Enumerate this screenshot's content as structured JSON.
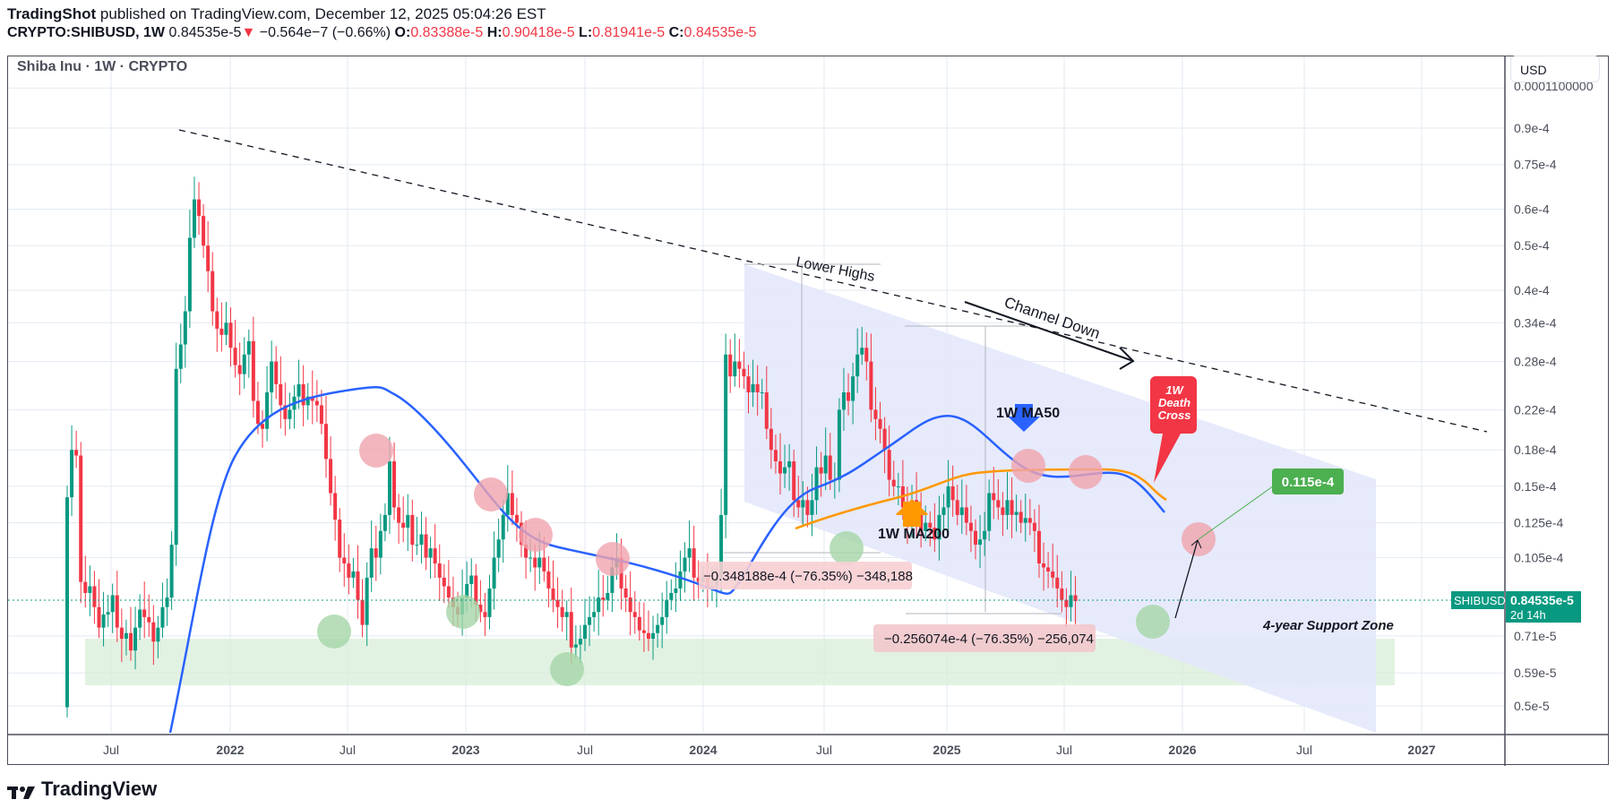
{
  "header": {
    "author": "TradingShot",
    "published_text": "published on TradingView.com, December 12, 2025 05:04:26 EST",
    "symbol": "CRYPTO:SHIBUSD, 1W",
    "last": "0.84535e-5",
    "change_arrow": "▼",
    "change": "−0.564e−7 (−0.66%)",
    "open_label": "O:",
    "open": "0.83388e-5",
    "high_label": "H:",
    "high": "0.90418e-5",
    "low_label": "L:",
    "low": "0.81941e-5",
    "close_label": "C:",
    "close": "0.84535e-5"
  },
  "plot_title": "Shiba Inu · 1W · CRYPTO",
  "currency_button": "USD",
  "logo_text": "TradingView",
  "colors": {
    "up": "#089981",
    "down": "#f23645",
    "ma50": "#2962ff",
    "ma200": "#ff9800",
    "channel": "#e3e8fb",
    "support_zone": "#d5ecd6",
    "red_circle": "#f0a4ae",
    "green_circle": "#a5d6a7",
    "target_label": "#4caf50",
    "price_label": "#089981",
    "death_cross": "#f23645"
  },
  "chart_data": {
    "type": "candlestick",
    "title": "Shiba Inu · 1W · CRYPTO",
    "xlabel": "",
    "ylabel": "USD",
    "y_scale": "log",
    "ylim": [
      4.5e-06,
      0.000105
    ],
    "y_ticks": [
      "0.0001100000",
      "0.9e-4",
      "0.75e-4",
      "0.6e-4",
      "0.5e-4",
      "0.4e-4",
      "0.34e-4",
      "0.28e-4",
      "0.22e-4",
      "0.18e-4",
      "0.15e-4",
      "0.125e-4",
      "0.105e-4",
      "0.71e-5",
      "0.59e-5",
      "0.5e-5"
    ],
    "y_tick_values": [
      0.00011,
      9e-05,
      7.5e-05,
      6e-05,
      5e-05,
      4e-05,
      3.4e-05,
      2.8e-05,
      2.2e-05,
      1.8e-05,
      1.5e-05,
      1.25e-05,
      1.05e-05,
      7.1e-06,
      5.9e-06,
      5e-06
    ],
    "x_ticks": [
      "Jul",
      "2022",
      "Jul",
      "2023",
      "Jul",
      "2024",
      "Jul",
      "2025",
      "Jul",
      "2026",
      "Jul",
      "2027"
    ],
    "grid": true,
    "current_price": {
      "symbol": "SHIBUSD",
      "value": "0.84535e-5",
      "countdown": "2d 14h"
    },
    "series": [
      {
        "name": "SHIBUSD weekly close (approx, e-5)",
        "start": "2021-05",
        "values": [
          1.42,
          1.8,
          1.75,
          0.93,
          0.88,
          0.91,
          0.82,
          0.74,
          0.79,
          0.8,
          0.87,
          0.74,
          0.7,
          0.72,
          0.66,
          0.74,
          0.81,
          0.78,
          0.76,
          0.69,
          0.74,
          0.82,
          0.86,
          1.12,
          2.7,
          3.05,
          3.6,
          5.2,
          6.3,
          5.8,
          5.0,
          4.4,
          3.6,
          3.3,
          3.2,
          3.4,
          3.0,
          2.75,
          2.63,
          2.9,
          3.1,
          2.3,
          2.05,
          2.0,
          2.4,
          2.8,
          2.5,
          2.25,
          2.1,
          2.2,
          2.35,
          2.5,
          2.25,
          2.35,
          2.3,
          2.25,
          2.05,
          1.72,
          1.45,
          1.27,
          1.05,
          1.02,
          0.95,
          0.98,
          0.85,
          0.75,
          0.95,
          1.1,
          1.05,
          1.2,
          1.3,
          1.7,
          1.35,
          1.25,
          1.22,
          1.3,
          1.12,
          1.12,
          1.18,
          1.05,
          1.1,
          1.02,
          0.95,
          0.91,
          0.86,
          0.82,
          0.79,
          0.86,
          0.92,
          0.96,
          0.83,
          0.8,
          0.78,
          0.9,
          1.05,
          1.15,
          1.3,
          1.45,
          1.3,
          1.25,
          1.12,
          1.05,
          1.05,
          1.0,
          1.05,
          0.98,
          0.9,
          0.85,
          0.82,
          0.78,
          0.8,
          0.67,
          0.68,
          0.7,
          0.75,
          0.78,
          0.8,
          0.86,
          0.85,
          0.88,
          1.0,
          1.05,
          0.9,
          0.86,
          0.8,
          0.78,
          0.73,
          0.72,
          0.7,
          0.72,
          0.75,
          0.78,
          0.85,
          0.88,
          0.9,
          0.98,
          1.05,
          1.1,
          0.95,
          0.93,
          0.95,
          0.9,
          0.91,
          0.95,
          1.3,
          2.9,
          2.6,
          2.8,
          2.7,
          2.6,
          2.4,
          2.5,
          2.4,
          2.4,
          2.0,
          1.8,
          1.7,
          1.6,
          1.65,
          1.7,
          1.4,
          1.35,
          1.4,
          1.3,
          1.4,
          1.65,
          1.6,
          1.75,
          1.55,
          1.55,
          2.2,
          2.4,
          2.3,
          2.6,
          2.9,
          3.0,
          2.8,
          2.2,
          2.1,
          2.0,
          1.8,
          1.55,
          1.5,
          1.5,
          1.35,
          1.25,
          1.4,
          1.3,
          1.2,
          1.25,
          1.22,
          1.15,
          1.3,
          1.35,
          1.5,
          1.4,
          1.3,
          1.35,
          1.25,
          1.2,
          1.12,
          1.15,
          1.2,
          1.45,
          1.4,
          1.35,
          1.3,
          1.4,
          1.3,
          1.32,
          1.25,
          1.28,
          1.25,
          1.2,
          1.02,
          1.0,
          0.98,
          0.95,
          0.9,
          0.85,
          0.82,
          0.87,
          0.845
        ]
      },
      {
        "name": "1W MA50",
        "color": "#2962ff"
      },
      {
        "name": "1W MA200",
        "color": "#ff9800"
      }
    ],
    "annotations": [
      {
        "text": "Lower Highs",
        "type": "label"
      },
      {
        "text": "Channel Down",
        "type": "arrow-label"
      },
      {
        "text": "1W MA50",
        "type": "arrow-label"
      },
      {
        "text": "1W MA200",
        "type": "arrow-label"
      },
      {
        "text": "1W Death Cross",
        "type": "callout"
      },
      {
        "text": "4-year Support Zone",
        "type": "zone-label"
      },
      {
        "text": "0.115e-4",
        "type": "target-label"
      },
      {
        "text": "−0.348188e-4 (−76.35%) −348,188",
        "type": "measure"
      },
      {
        "text": "−0.256074e-4 (−76.35%) −256,074",
        "type": "measure"
      }
    ]
  },
  "annotations": {
    "lower_highs": "Lower Highs",
    "channel_down": "Channel Down",
    "ma50": "1W MA50",
    "ma200": "1W MA200",
    "death_cross": [
      "1W",
      "Death",
      "Cross"
    ],
    "support_zone": "4-year Support Zone",
    "target": "0.115e-4",
    "measure1": "−0.348188e-4 (−76.35%) −348,188",
    "measure2": "−0.256074e-4 (−76.35%) −256,074"
  }
}
